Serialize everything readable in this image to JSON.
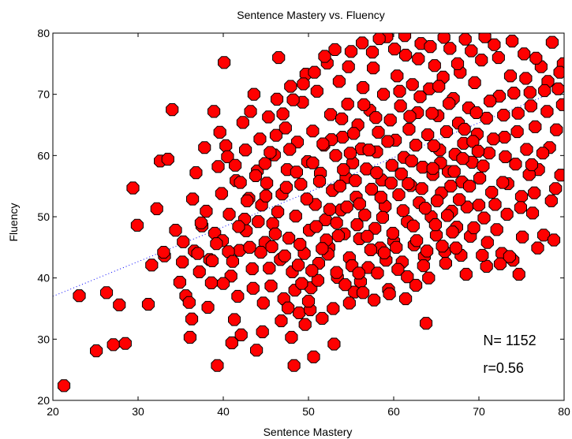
{
  "chart_data": {
    "type": "scatter",
    "title": "Sentence Mastery vs. Fluency",
    "xlabel": "Sentence Mastery",
    "ylabel": "Fluency",
    "xlim": [
      20,
      80
    ],
    "ylim": [
      20,
      80
    ],
    "xticks": [
      20,
      30,
      40,
      50,
      60,
      70,
      80
    ],
    "yticks": [
      20,
      30,
      40,
      50,
      60,
      70,
      80
    ],
    "grid": false,
    "marker": "octagon",
    "marker_fill": "#ff0000",
    "marker_edge": "#000000",
    "trendline": {
      "style": "dotted",
      "color": "#0000ff",
      "x": [
        20,
        80
      ],
      "y": [
        37,
        71
      ]
    },
    "annotations": [
      {
        "text": "N= 1152",
        "x": 70.5,
        "y": 29
      },
      {
        "text": "r=0.56",
        "x": 70.5,
        "y": 24.5
      }
    ],
    "points": [
      [
        21.3,
        22.4
      ],
      [
        23.1,
        37.1
      ],
      [
        25.1,
        28.1
      ],
      [
        26.3,
        37.6
      ],
      [
        27.1,
        29.1
      ],
      [
        27.8,
        35.6
      ],
      [
        28.5,
        29.3
      ],
      [
        29.4,
        54.7
      ],
      [
        29.9,
        48.6
      ],
      [
        31.2,
        35.7
      ],
      [
        31.6,
        42.1
      ],
      [
        32.2,
        51.3
      ],
      [
        32.6,
        59.1
      ],
      [
        33.1,
        43.6
      ],
      [
        33.5,
        59.4
      ],
      [
        34.0,
        67.5
      ],
      [
        34.4,
        47.8
      ],
      [
        34.9,
        39.3
      ],
      [
        35.3,
        45.9
      ],
      [
        35.6,
        37.1
      ],
      [
        36.0,
        36.0
      ],
      [
        36.1,
        30.3
      ],
      [
        36.3,
        33.3
      ],
      [
        36.6,
        44.4
      ],
      [
        36.8,
        57.2
      ],
      [
        37.2,
        41.0
      ],
      [
        37.5,
        48.5
      ],
      [
        37.8,
        61.3
      ],
      [
        38.0,
        50.9
      ],
      [
        38.2,
        35.2
      ],
      [
        38.4,
        43.0
      ],
      [
        38.6,
        39.2
      ],
      [
        38.9,
        67.2
      ],
      [
        39.0,
        47.3
      ],
      [
        39.3,
        25.7
      ],
      [
        39.4,
        58.2
      ],
      [
        39.6,
        63.8
      ],
      [
        39.9,
        46.1
      ],
      [
        40.1,
        75.2
      ],
      [
        40.3,
        61.6
      ],
      [
        40.5,
        59.8
      ],
      [
        40.7,
        50.4
      ],
      [
        40.9,
        40.3
      ],
      [
        41.0,
        29.4
      ],
      [
        41.3,
        33.2
      ],
      [
        41.5,
        55.9
      ],
      [
        41.7,
        37.0
      ],
      [
        41.9,
        44.5
      ],
      [
        42.1,
        30.7
      ],
      [
        42.3,
        65.4
      ],
      [
        42.5,
        49.6
      ],
      [
        42.7,
        47.7
      ],
      [
        43.0,
        53.0
      ],
      [
        43.2,
        67.2
      ],
      [
        43.4,
        41.5
      ],
      [
        43.6,
        70.0
      ],
      [
        43.9,
        28.2
      ],
      [
        44.0,
        57.5
      ],
      [
        44.3,
        62.7
      ],
      [
        44.5,
        51.9
      ],
      [
        44.7,
        35.9
      ],
      [
        44.9,
        45.8
      ],
      [
        45.1,
        55.5
      ],
      [
        45.3,
        66.3
      ],
      [
        45.6,
        38.7
      ],
      [
        45.8,
        48.9
      ],
      [
        46.0,
        60.1
      ],
      [
        46.3,
        69.2
      ],
      [
        46.5,
        76.0
      ],
      [
        46.7,
        43.0
      ],
      [
        46.9,
        53.7
      ],
      [
        47.1,
        36.6
      ],
      [
        47.3,
        64.5
      ],
      [
        47.5,
        57.7
      ],
      [
        47.7,
        46.5
      ],
      [
        47.9,
        71.3
      ],
      [
        48.1,
        41.0
      ],
      [
        48.3,
        25.7
      ],
      [
        48.5,
        50.1
      ],
      [
        48.7,
        62.2
      ],
      [
        48.9,
        34.3
      ],
      [
        49.1,
        55.3
      ],
      [
        49.3,
        68.7
      ],
      [
        49.5,
        44.0
      ],
      [
        49.7,
        73.3
      ],
      [
        49.9,
        59.0
      ],
      [
        50.1,
        47.8
      ],
      [
        50.3,
        38.4
      ],
      [
        50.5,
        64.0
      ],
      [
        50.6,
        27.1
      ],
      [
        50.8,
        52.0
      ],
      [
        51.0,
        70.5
      ],
      [
        51.2,
        42.4
      ],
      [
        51.4,
        57.1
      ],
      [
        51.6,
        33.4
      ],
      [
        51.8,
        61.7
      ],
      [
        52.0,
        49.5
      ],
      [
        52.2,
        75.1
      ],
      [
        52.4,
        45.0
      ],
      [
        52.6,
        66.7
      ],
      [
        52.8,
        54.3
      ],
      [
        53.0,
        29.2
      ],
      [
        53.2,
        60.0
      ],
      [
        53.4,
        40.1
      ],
      [
        53.6,
        72.1
      ],
      [
        53.8,
        51.1
      ],
      [
        54.0,
        63.0
      ],
      [
        54.2,
        47.2
      ],
      [
        54.4,
        56.4
      ],
      [
        54.6,
        68.4
      ],
      [
        54.8,
        43.3
      ],
      [
        55.0,
        77.0
      ],
      [
        55.2,
        58.8
      ],
      [
        55.4,
        37.7
      ],
      [
        55.6,
        53.2
      ],
      [
        55.8,
        65.0
      ],
      [
        56.0,
        46.4
      ],
      [
        56.2,
        61.1
      ],
      [
        56.4,
        71.1
      ],
      [
        56.6,
        50.3
      ],
      [
        56.8,
        57.8
      ],
      [
        57.0,
        41.7
      ],
      [
        57.2,
        67.4
      ],
      [
        57.4,
        54.5
      ],
      [
        57.6,
        74.3
      ],
      [
        57.8,
        48.1
      ],
      [
        58.0,
        60.6
      ],
      [
        58.2,
        63.8
      ],
      [
        58.4,
        44.9
      ],
      [
        58.6,
        56.0
      ],
      [
        58.8,
        70.0
      ],
      [
        59.0,
        51.7
      ],
      [
        59.2,
        79.4
      ],
      [
        59.4,
        38.1
      ],
      [
        59.6,
        65.8
      ],
      [
        59.8,
        58.4
      ],
      [
        60.0,
        46.0
      ],
      [
        60.2,
        62.5
      ],
      [
        60.4,
        73.0
      ],
      [
        60.6,
        53.6
      ],
      [
        60.8,
        68.1
      ],
      [
        61.0,
        42.6
      ],
      [
        61.2,
        59.7
      ],
      [
        61.4,
        76.4
      ],
      [
        61.6,
        49.2
      ],
      [
        61.8,
        64.3
      ],
      [
        62.0,
        55.1
      ],
      [
        62.2,
        71.6
      ],
      [
        62.4,
        45.4
      ],
      [
        62.6,
        61.7
      ],
      [
        62.8,
        67.0
      ],
      [
        63.0,
        52.3
      ],
      [
        63.2,
        78.3
      ],
      [
        63.4,
        58.1
      ],
      [
        63.6,
        43.5
      ],
      [
        63.8,
        32.6
      ],
      [
        64.0,
        63.4
      ],
      [
        64.2,
        70.9
      ],
      [
        64.4,
        50.0
      ],
      [
        64.6,
        56.9
      ],
      [
        64.8,
        74.7
      ],
      [
        65.0,
        47.0
      ],
      [
        65.2,
        66.5
      ],
      [
        65.4,
        60.9
      ],
      [
        65.6,
        53.9
      ],
      [
        65.8,
        72.8
      ],
      [
        66.0,
        44.3
      ],
      [
        66.2,
        63.9
      ],
      [
        66.4,
        57.4
      ],
      [
        66.6,
        77.5
      ],
      [
        66.8,
        50.9
      ],
      [
        67.0,
        69.3
      ],
      [
        67.2,
        60.2
      ],
      [
        67.4,
        48.3
      ],
      [
        67.6,
        65.3
      ],
      [
        67.8,
        73.6
      ],
      [
        68.0,
        55.7
      ],
      [
        68.2,
        62.0
      ],
      [
        68.4,
        79.0
      ],
      [
        68.6,
        51.6
      ],
      [
        68.8,
        67.8
      ],
      [
        69.0,
        46.8
      ],
      [
        69.2,
        58.9
      ],
      [
        69.5,
        71.9
      ],
      [
        69.8,
        63.5
      ],
      [
        70.1,
        56.3
      ],
      [
        70.3,
        75.6
      ],
      [
        70.6,
        49.8
      ],
      [
        70.9,
        66.1
      ],
      [
        71.2,
        60.4
      ],
      [
        71.5,
        54.0
      ],
      [
        71.8,
        78.1
      ],
      [
        72.1,
        47.9
      ],
      [
        72.4,
        69.7
      ],
      [
        72.7,
        44.0
      ],
      [
        73.0,
        63.0
      ],
      [
        73.4,
        55.4
      ],
      [
        73.7,
        73.0
      ],
      [
        74.0,
        42.9
      ],
      [
        74.3,
        58.6
      ],
      [
        74.6,
        66.9
      ],
      [
        75.0,
        53.3
      ],
      [
        75.3,
        76.6
      ],
      [
        75.6,
        61.0
      ],
      [
        76.0,
        70.3
      ],
      [
        76.3,
        50.6
      ],
      [
        76.6,
        64.7
      ],
      [
        77.0,
        57.7
      ],
      [
        77.3,
        74.5
      ],
      [
        77.6,
        47.0
      ],
      [
        78.0,
        67.2
      ],
      [
        78.3,
        61.3
      ],
      [
        78.6,
        78.5
      ],
      [
        79.0,
        54.6
      ],
      [
        79.3,
        70.9
      ],
      [
        79.6,
        56.8
      ],
      [
        79.8,
        68.3
      ],
      [
        79.9,
        75.0
      ],
      [
        33.0,
        44.2
      ],
      [
        35.2,
        42.6
      ],
      [
        37.0,
        44.0
      ],
      [
        38.7,
        42.8
      ],
      [
        41.8,
        48.4
      ],
      [
        43.5,
        38.3
      ],
      [
        44.6,
        31.2
      ],
      [
        45.4,
        41.6
      ],
      [
        46.1,
        47.2
      ],
      [
        47.6,
        35.1
      ],
      [
        48.4,
        38.0
      ],
      [
        49.0,
        45.5
      ],
      [
        49.6,
        32.4
      ],
      [
        50.2,
        34.8
      ],
      [
        51.1,
        39.6
      ],
      [
        52.3,
        43.9
      ],
      [
        53.5,
        46.9
      ],
      [
        54.3,
        38.9
      ],
      [
        55.1,
        42.0
      ],
      [
        56.1,
        39.4
      ],
      [
        57.3,
        44.6
      ],
      [
        58.1,
        40.8
      ],
      [
        59.1,
        42.9
      ],
      [
        60.5,
        41.4
      ],
      [
        61.6,
        40.2
      ],
      [
        62.7,
        46.1
      ],
      [
        63.5,
        42.0
      ],
      [
        64.9,
        48.7
      ],
      [
        65.7,
        45.2
      ],
      [
        66.9,
        47.5
      ],
      [
        67.9,
        43.7
      ],
      [
        69.4,
        48.2
      ],
      [
        71.0,
        45.8
      ],
      [
        72.5,
        42.3
      ],
      [
        73.6,
        43.5
      ],
      [
        75.1,
        46.7
      ],
      [
        76.9,
        44.9
      ],
      [
        78.8,
        46.2
      ],
      [
        42.6,
        60.9
      ],
      [
        43.8,
        56.7
      ],
      [
        44.9,
        58.7
      ],
      [
        46.2,
        63.3
      ],
      [
        47.0,
        66.8
      ],
      [
        48.2,
        69.1
      ],
      [
        49.4,
        71.7
      ],
      [
        50.7,
        73.6
      ],
      [
        51.9,
        76.2
      ],
      [
        53.1,
        77.3
      ],
      [
        54.7,
        74.5
      ],
      [
        56.3,
        78.4
      ],
      [
        57.5,
        76.9
      ],
      [
        58.3,
        79.1
      ],
      [
        60.1,
        77.4
      ],
      [
        61.3,
        79.6
      ],
      [
        62.9,
        75.8
      ],
      [
        64.3,
        77.8
      ],
      [
        65.9,
        79.3
      ],
      [
        67.5,
        75.0
      ],
      [
        69.1,
        77.1
      ],
      [
        70.7,
        79.4
      ],
      [
        72.3,
        76.0
      ],
      [
        73.9,
        78.7
      ],
      [
        75.5,
        72.6
      ],
      [
        76.7,
        75.9
      ],
      [
        78.1,
        72.1
      ],
      [
        79.5,
        73.6
      ],
      [
        39.8,
        53.8
      ],
      [
        40.6,
        44.3
      ],
      [
        41.4,
        58.4
      ],
      [
        42.8,
        52.6
      ],
      [
        44.1,
        49.2
      ],
      [
        45.0,
        53.4
      ],
      [
        46.4,
        50.8
      ],
      [
        47.4,
        54.8
      ],
      [
        48.6,
        57.3
      ],
      [
        49.8,
        52.9
      ],
      [
        51.3,
        55.8
      ],
      [
        52.5,
        51.2
      ],
      [
        53.7,
        55.0
      ],
      [
        54.9,
        60.4
      ],
      [
        56.0,
        52.1
      ],
      [
        57.1,
        60.9
      ],
      [
        58.5,
        53.2
      ],
      [
        59.7,
        55.5
      ],
      [
        60.9,
        57.0
      ],
      [
        62.1,
        59.1
      ],
      [
        63.3,
        54.6
      ],
      [
        64.7,
        61.6
      ],
      [
        65.5,
        58.8
      ],
      [
        66.7,
        55.0
      ],
      [
        68.1,
        59.5
      ],
      [
        69.3,
        62.3
      ],
      [
        70.5,
        58.3
      ],
      [
        71.7,
        62.7
      ],
      [
        73.1,
        59.8
      ],
      [
        74.5,
        63.9
      ],
      [
        75.9,
        56.9
      ],
      [
        77.5,
        60.4
      ],
      [
        79.1,
        64.2
      ],
      [
        52.7,
        62.6
      ],
      [
        53.9,
        66.0
      ],
      [
        55.3,
        63.6
      ],
      [
        56.5,
        68.3
      ],
      [
        57.9,
        66.2
      ],
      [
        59.3,
        62.3
      ],
      [
        60.7,
        70.5
      ],
      [
        61.9,
        66.4
      ],
      [
        63.1,
        69.6
      ],
      [
        64.5,
        66.9
      ],
      [
        65.3,
        71.3
      ],
      [
        66.5,
        68.5
      ],
      [
        68.3,
        64.3
      ],
      [
        69.7,
        67.0
      ],
      [
        71.3,
        68.9
      ],
      [
        72.9,
        66.6
      ],
      [
        74.1,
        70.2
      ],
      [
        76.1,
        68.1
      ],
      [
        77.7,
        70.6
      ],
      [
        50.9,
        48.4
      ],
      [
        52.1,
        46.2
      ],
      [
        53.3,
        49.0
      ],
      [
        54.5,
        51.6
      ],
      [
        55.7,
        48.7
      ],
      [
        56.9,
        46.8
      ],
      [
        58.7,
        49.9
      ],
      [
        59.9,
        47.3
      ],
      [
        61.1,
        51.0
      ],
      [
        62.3,
        48.5
      ],
      [
        63.7,
        51.4
      ],
      [
        65.1,
        52.6
      ],
      [
        66.3,
        50.2
      ],
      [
        67.7,
        52.8
      ],
      [
        68.9,
        55.0
      ],
      [
        70.0,
        51.9
      ],
      [
        71.9,
        52.0
      ],
      [
        73.3,
        50.4
      ],
      [
        74.9,
        51.5
      ],
      [
        76.5,
        53.9
      ],
      [
        78.5,
        52.6
      ],
      [
        44.4,
        44.2
      ],
      [
        45.7,
        45.1
      ],
      [
        47.2,
        43.6
      ],
      [
        48.8,
        42.1
      ],
      [
        50.4,
        41.2
      ],
      [
        51.6,
        44.8
      ],
      [
        53.3,
        40.9
      ],
      [
        54.8,
        35.9
      ],
      [
        56.4,
        37.6
      ],
      [
        57.7,
        36.4
      ],
      [
        59.5,
        37.4
      ],
      [
        61.4,
        36.6
      ],
      [
        62.6,
        38.8
      ],
      [
        64.1,
        40.0
      ],
      [
        66.1,
        42.4
      ],
      [
        68.5,
        40.6
      ],
      [
        70.9,
        41.9
      ],
      [
        74.7,
        40.6
      ],
      [
        49.2,
        39.1
      ],
      [
        48.0,
        30.3
      ],
      [
        46.8,
        33.0
      ],
      [
        50.0,
        36.2
      ],
      [
        52.9,
        35.0
      ],
      [
        55.9,
        40.8
      ],
      [
        58.9,
        44.1
      ],
      [
        60.3,
        45.0
      ],
      [
        63.9,
        44.4
      ],
      [
        67.3,
        44.9
      ],
      [
        70.4,
        43.7
      ],
      [
        43.1,
        45.0
      ],
      [
        41.1,
        42.7
      ],
      [
        40.0,
        39.1
      ],
      [
        39.2,
        45.6
      ],
      [
        37.4,
        49.0
      ],
      [
        36.4,
        52.9
      ],
      [
        42.0,
        55.6
      ],
      [
        45.5,
        60.5
      ],
      [
        47.8,
        61.0
      ],
      [
        50.5,
        58.8
      ],
      [
        51.7,
        61.9
      ],
      [
        54.1,
        57.7
      ],
      [
        55.5,
        55.9
      ],
      [
        58.0,
        57.2
      ],
      [
        61.7,
        55.4
      ],
      [
        64.6,
        57.9
      ],
      [
        67.1,
        57.4
      ],
      [
        69.9,
        60.7
      ],
      [
        72.8,
        55.6
      ],
      [
        76.2,
        58.5
      ]
    ]
  }
}
